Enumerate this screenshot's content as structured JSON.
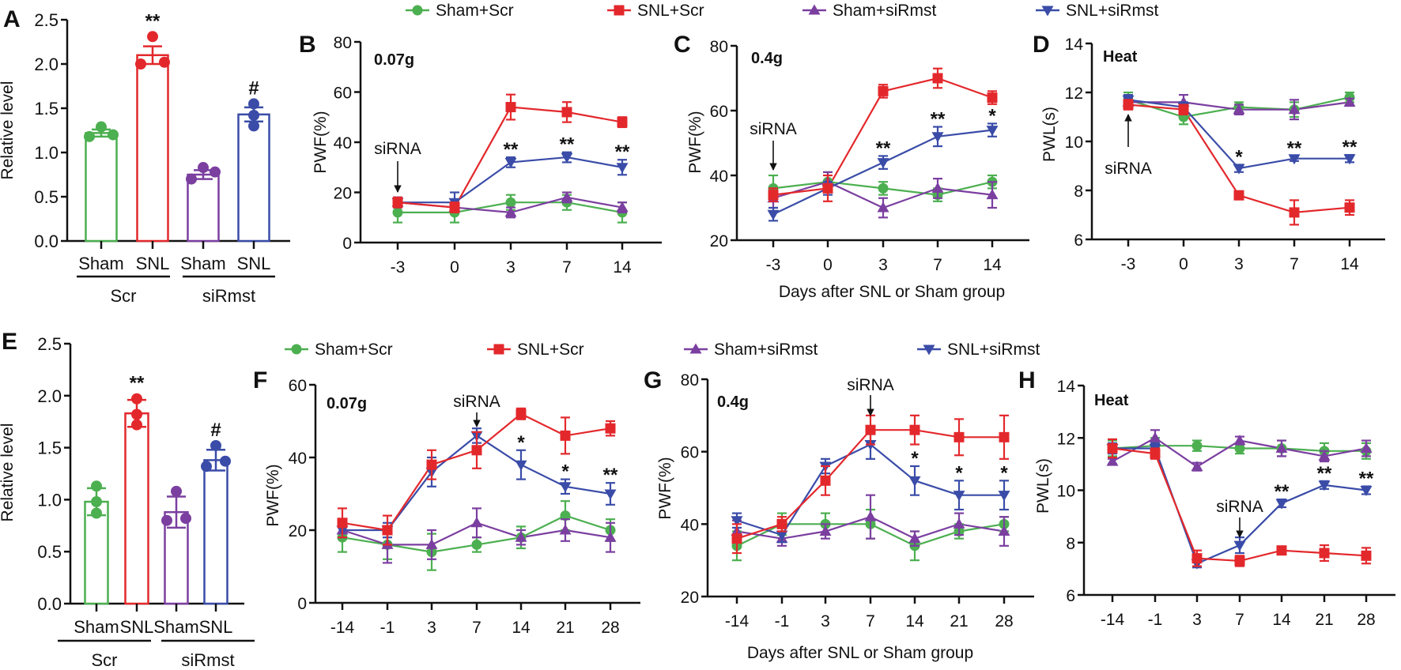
{
  "legend": [
    "Sham+Scr",
    "SNL+Scr",
    "Sham+siRmst",
    "SNL+siRmst"
  ],
  "colors": {
    "Sham+Scr": "#4caf50",
    "SNL+Scr": "#e3282c",
    "Sham+siRmst": "#7b3fa0",
    "SNL+siRmst": "#3a4ca8"
  },
  "chart_data": [
    {
      "panel": "A",
      "type": "bar",
      "ylabel": "Relative level",
      "categories": [
        "Sham",
        "SNL",
        "Sham",
        "SNL"
      ],
      "groups": [
        "Scr",
        "siRmst"
      ],
      "series_names": [
        "Sham+Scr",
        "SNL+Scr",
        "Sham+siRmst",
        "SNL+siRmst"
      ],
      "values": [
        1.22,
        2.1,
        0.75,
        1.43
      ],
      "errors": [
        0.04,
        0.1,
        0.05,
        0.08
      ],
      "points": [
        [
          1.18,
          1.29,
          1.2
        ],
        [
          2.0,
          2.31,
          2.02
        ],
        [
          0.7,
          0.83,
          0.78
        ],
        [
          1.55,
          1.42,
          1.3
        ]
      ],
      "ylim": [
        0,
        2.5
      ],
      "ytick_labels": [
        "0.0",
        "0.5",
        "1.0",
        "1.5",
        "2.0",
        "2.5"
      ],
      "significance": [
        {
          "index": 1,
          "label": "**"
        },
        {
          "index": 3,
          "label": "#"
        }
      ]
    },
    {
      "panel": "B",
      "type": "line",
      "subtitle": "0.07g",
      "ylabel": "PWF(%)",
      "xlabel": "",
      "x_tick_labels": [
        "-3",
        "0",
        "3",
        "7",
        "14"
      ],
      "ylim": [
        0,
        80
      ],
      "ytick_labels": [
        "0",
        "20",
        "40",
        "60",
        "80"
      ],
      "series": [
        {
          "name": "Sham+Scr",
          "marker": "circle",
          "values": [
            12,
            12,
            16,
            16,
            12
          ],
          "errors": [
            4,
            4,
            3,
            3,
            4
          ]
        },
        {
          "name": "Sham+siRmst",
          "marker": "triangle-up",
          "values": [
            16,
            14,
            12,
            18,
            14
          ],
          "errors": [
            2,
            2,
            2,
            2,
            2
          ]
        },
        {
          "name": "SNL+siRmst",
          "marker": "triangle-down",
          "values": [
            16,
            16,
            32,
            34,
            30
          ],
          "errors": [
            2,
            4,
            2,
            2,
            3
          ]
        },
        {
          "name": "SNL+Scr",
          "marker": "square",
          "values": [
            16,
            14,
            54,
            52,
            48
          ],
          "errors": [
            2,
            2,
            5,
            4,
            2
          ]
        }
      ],
      "significance": [
        {
          "x": "3",
          "label": "**"
        },
        {
          "x": "7",
          "label": "**"
        },
        {
          "x": "14",
          "label": "**"
        }
      ],
      "annotation": {
        "text": "siRNA",
        "x": "-3"
      }
    },
    {
      "panel": "C",
      "type": "line",
      "subtitle": "0.4g",
      "ylabel": "PWF(%)",
      "xlabel": "Days after SNL or Sham group",
      "x_tick_labels": [
        "-3",
        "0",
        "3",
        "7",
        "14"
      ],
      "ylim": [
        20,
        80
      ],
      "ytick_labels": [
        "20",
        "40",
        "60",
        "80"
      ],
      "series": [
        {
          "name": "Sham+Scr",
          "marker": "circle",
          "values": [
            36,
            38,
            36,
            34,
            38
          ],
          "errors": [
            4,
            3,
            2,
            2,
            2
          ]
        },
        {
          "name": "Sham+siRmst",
          "marker": "triangle-up",
          "values": [
            33,
            38,
            30,
            36,
            34
          ],
          "errors": [
            3,
            3,
            3,
            3,
            4
          ]
        },
        {
          "name": "SNL+siRmst",
          "marker": "triangle-down",
          "values": [
            28,
            36,
            44,
            52,
            54
          ],
          "errors": [
            2,
            2,
            2,
            3,
            2
          ]
        },
        {
          "name": "SNL+Scr",
          "marker": "square",
          "values": [
            34,
            36,
            66,
            70,
            64
          ],
          "errors": [
            2,
            4,
            2,
            3,
            2
          ]
        }
      ],
      "significance": [
        {
          "x": "3",
          "label": "**"
        },
        {
          "x": "7",
          "label": "**"
        },
        {
          "x": "14",
          "label": "*"
        }
      ],
      "annotation": {
        "text": "siRNA",
        "x": "-3"
      }
    },
    {
      "panel": "D",
      "type": "line",
      "subtitle": "Heat",
      "ylabel": "PWL(s)",
      "xlabel": "",
      "x_tick_labels": [
        "-3",
        "0",
        "3",
        "7",
        "14"
      ],
      "ylim": [
        6,
        14
      ],
      "ytick_labels": [
        "6",
        "8",
        "10",
        "12",
        "14"
      ],
      "series": [
        {
          "name": "Sham+Scr",
          "marker": "circle",
          "values": [
            11.7,
            11.0,
            11.4,
            11.3,
            11.8
          ],
          "errors": [
            0.3,
            0.3,
            0.2,
            0.3,
            0.2
          ]
        },
        {
          "name": "Sham+siRmst",
          "marker": "triangle-up",
          "values": [
            11.6,
            11.6,
            11.3,
            11.3,
            11.6
          ],
          "errors": [
            0.2,
            0.3,
            0.2,
            0.4,
            0.15
          ]
        },
        {
          "name": "SNL+siRmst",
          "marker": "triangle-down",
          "values": [
            11.7,
            11.4,
            8.9,
            9.3,
            9.3
          ],
          "errors": [
            0.2,
            0.2,
            0.15,
            0.1,
            0.15
          ]
        },
        {
          "name": "SNL+Scr",
          "marker": "square",
          "values": [
            11.5,
            11.3,
            7.8,
            7.1,
            7.3
          ],
          "errors": [
            0.2,
            0.2,
            0.1,
            0.5,
            0.3
          ]
        }
      ],
      "significance": [
        {
          "x": "3",
          "label": "*"
        },
        {
          "x": "7",
          "label": "**"
        },
        {
          "x": "14",
          "label": "**"
        }
      ],
      "annotation": {
        "text": "siRNA",
        "x": "-3"
      }
    },
    {
      "panel": "E",
      "type": "bar",
      "ylabel": "Relative level",
      "categories": [
        "Sham",
        "SNL",
        "Sham",
        "SNL"
      ],
      "groups": [
        "Scr",
        "siRmst"
      ],
      "series_names": [
        "Sham+Scr",
        "SNL+Scr",
        "Sham+siRmst",
        "SNL+siRmst"
      ],
      "values": [
        0.98,
        1.83,
        0.88,
        1.38
      ],
      "errors": [
        0.13,
        0.13,
        0.15,
        0.1
      ],
      "points": [
        [
          1.13,
          0.98,
          0.87
        ],
        [
          1.97,
          1.82,
          1.72
        ],
        [
          1.08,
          0.8,
          0.82
        ],
        [
          1.52,
          1.32,
          1.37
        ]
      ],
      "ylim": [
        0,
        2.5
      ],
      "ytick_labels": [
        "0.0",
        "0.5",
        "1.0",
        "1.5",
        "2.0",
        "2.5"
      ],
      "significance": [
        {
          "index": 1,
          "label": "**"
        },
        {
          "index": 3,
          "label": "#"
        }
      ]
    },
    {
      "panel": "F",
      "type": "line",
      "subtitle": "0.07g",
      "ylabel": "PWF(%)",
      "xlabel": "",
      "x_tick_labels": [
        "-14",
        "-1",
        "3",
        "7",
        "14",
        "21",
        "28"
      ],
      "ylim": [
        0,
        60
      ],
      "ytick_labels": [
        "0",
        "20",
        "40",
        "60"
      ],
      "series": [
        {
          "name": "Sham+Scr",
          "marker": "circle",
          "values": [
            18,
            16,
            14,
            16,
            18,
            24,
            20
          ],
          "errors": [
            4,
            4,
            5,
            2,
            3,
            4,
            3
          ]
        },
        {
          "name": "Sham+siRmst",
          "marker": "triangle-up",
          "values": [
            20,
            16,
            16,
            22,
            18,
            20,
            18
          ],
          "errors": [
            2,
            5,
            4,
            4,
            2,
            3,
            4
          ]
        },
        {
          "name": "SNL+siRmst",
          "marker": "triangle-down",
          "values": [
            20,
            20,
            36,
            46,
            38,
            32,
            30
          ],
          "errors": [
            2,
            2,
            4,
            2,
            4,
            2,
            3
          ]
        },
        {
          "name": "SNL+Scr",
          "marker": "square",
          "values": [
            22,
            20,
            38,
            42,
            52,
            46,
            48
          ],
          "errors": [
            4,
            4,
            4,
            5,
            1.5,
            5,
            2
          ]
        }
      ],
      "significance": [
        {
          "x": "14",
          "label": "*"
        },
        {
          "x": "21",
          "label": "*"
        },
        {
          "x": "28",
          "label": "**"
        }
      ],
      "annotation": {
        "text": "siRNA",
        "x": "7"
      }
    },
    {
      "panel": "G",
      "type": "line",
      "subtitle": "0.4g",
      "ylabel": "PWF(%)",
      "xlabel": "Days after SNL or Sham group",
      "x_tick_labels": [
        "-14",
        "-1",
        "3",
        "7",
        "14",
        "21",
        "28"
      ],
      "ylim": [
        20,
        80
      ],
      "ytick_labels": [
        "20",
        "40",
        "60",
        "80"
      ],
      "series": [
        {
          "name": "Sham+Scr",
          "marker": "circle",
          "values": [
            34,
            40,
            40,
            40,
            34,
            38,
            40
          ],
          "errors": [
            4,
            3,
            3,
            4,
            4,
            2,
            2
          ]
        },
        {
          "name": "Sham+siRmst",
          "marker": "triangle-up",
          "values": [
            38,
            36,
            38,
            42,
            36,
            40,
            38
          ],
          "errors": [
            3,
            2,
            2,
            6,
            2,
            3,
            4
          ]
        },
        {
          "name": "SNL+siRmst",
          "marker": "triangle-down",
          "values": [
            41,
            37,
            56,
            62,
            52,
            48,
            48
          ],
          "errors": [
            2,
            2,
            2,
            4,
            4,
            4,
            4
          ]
        },
        {
          "name": "SNL+Scr",
          "marker": "square",
          "values": [
            36,
            40,
            52,
            66,
            66,
            64,
            64
          ],
          "errors": [
            4,
            2,
            4,
            4,
            4,
            5,
            6
          ]
        }
      ],
      "significance": [
        {
          "x": "14",
          "label": "*"
        },
        {
          "x": "21",
          "label": "*"
        },
        {
          "x": "28",
          "label": "*"
        }
      ],
      "annotation": {
        "text": "siRNA",
        "x": "7"
      }
    },
    {
      "panel": "H",
      "type": "line",
      "subtitle": "Heat",
      "ylabel": "PWL(s)",
      "xlabel": "",
      "x_tick_labels": [
        "-14",
        "-1",
        "3",
        "7",
        "14",
        "21",
        "28"
      ],
      "ylim": [
        6,
        14
      ],
      "ytick_labels": [
        "6",
        "8",
        "10",
        "12",
        "14"
      ],
      "series": [
        {
          "name": "Sham+Scr",
          "marker": "circle",
          "values": [
            11.6,
            11.7,
            11.7,
            11.6,
            11.6,
            11.5,
            11.5
          ],
          "errors": [
            0.3,
            0.3,
            0.2,
            0.2,
            0.3,
            0.3,
            0.3
          ]
        },
        {
          "name": "Sham+siRmst",
          "marker": "triangle-up",
          "values": [
            11.1,
            12.0,
            10.9,
            11.9,
            11.6,
            11.3,
            11.6
          ],
          "errors": [
            0.1,
            0.3,
            0.15,
            0.15,
            0.3,
            0.2,
            0.3
          ]
        },
        {
          "name": "SNL+siRmst",
          "marker": "triangle-down",
          "values": [
            11.6,
            11.6,
            7.2,
            7.9,
            9.5,
            10.2,
            10.0
          ],
          "errors": [
            0.2,
            0.2,
            0.15,
            0.3,
            0.15,
            0.15,
            0.15
          ]
        },
        {
          "name": "SNL+Scr",
          "marker": "square",
          "values": [
            11.6,
            11.4,
            7.4,
            7.3,
            7.7,
            7.6,
            7.5
          ],
          "errors": [
            0.35,
            0.2,
            0.3,
            0.2,
            0.1,
            0.3,
            0.3
          ]
        }
      ],
      "significance": [
        {
          "x": "14",
          "label": "**"
        },
        {
          "x": "21",
          "label": "**"
        },
        {
          "x": "28",
          "label": "**"
        }
      ],
      "annotation": {
        "text": "siRNA",
        "x": "7"
      }
    }
  ]
}
